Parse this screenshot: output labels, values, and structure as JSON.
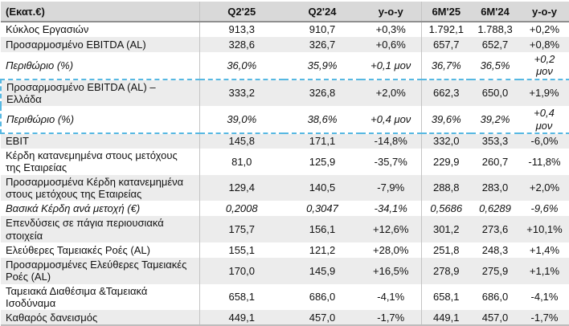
{
  "theme": {
    "header_bg": "#d9d9d9",
    "stripe_bg": "#ececec",
    "highlight_border": "#57b8e2"
  },
  "table": {
    "unit_label": "(Εκατ.€)",
    "columns": [
      "Q2'25",
      "Q2'24",
      "y-o-y",
      "6M'25",
      "6M'24",
      "y-o-y"
    ],
    "rows": [
      {
        "label": "Κύκλος Εργασιών",
        "values": [
          "913,3",
          "910,7",
          "+0,3%",
          "1.792,1",
          "1.788,3",
          "+0,2%"
        ],
        "stripe": false,
        "italic": false,
        "highlighted": ""
      },
      {
        "label": "Προσαρμοσμένο EBITDA (AL)",
        "values": [
          "328,6",
          "326,7",
          "+0,6%",
          "657,7",
          "652,7",
          "+0,8%"
        ],
        "stripe": true,
        "italic": false,
        "highlighted": ""
      },
      {
        "label": "Περιθώριο (%)",
        "values": [
          "36,0%",
          "35,9%",
          "+0,1 μον",
          "36,7%",
          "36,5%",
          "+0,2\nμον"
        ],
        "stripe": false,
        "italic": true,
        "highlighted": ""
      },
      {
        "label": "Προσαρμοσμένο EBITDA (AL) –\nΕλλάδα",
        "values": [
          "333,2",
          "326,8",
          "+2,0%",
          "662,3",
          "650,0",
          "+1,9%"
        ],
        "stripe": true,
        "italic": false,
        "highlighted": "top"
      },
      {
        "label": "Περιθώριο (%)",
        "values": [
          "39,0%",
          "38,6%",
          "+0,4 μον",
          "39,6%",
          "39,2%",
          "+0,4\nμον"
        ],
        "stripe": false,
        "italic": true,
        "highlighted": "bottom"
      },
      {
        "label": "EBIT",
        "values": [
          "145,8",
          "171,1",
          "-14,8%",
          "332,0",
          "353,3",
          "-6,0%"
        ],
        "stripe": true,
        "italic": false,
        "highlighted": ""
      },
      {
        "label": "Κέρδη κατανεμημένα στους μετόχους\nτης Εταιρείας",
        "values": [
          "81,0",
          "125,9",
          "-35,7%",
          "229,9",
          "260,7",
          "-11,8%"
        ],
        "stripe": false,
        "italic": false,
        "highlighted": ""
      },
      {
        "label": "Προσαρμοσμένα Κέρδη κατανεμημένα\nστους μετόχους της Εταιρείας",
        "values": [
          "129,4",
          "140,5",
          "-7,9%",
          "288,8",
          "283,0",
          "+2,0%"
        ],
        "stripe": true,
        "italic": false,
        "highlighted": ""
      },
      {
        "label": "Βασικά Κέρδη ανά μετοχή (€)",
        "values": [
          "0,2008",
          "0,3047",
          "-34,1%",
          "0,5686",
          "0,6289",
          "-9,6%"
        ],
        "stripe": false,
        "italic": true,
        "highlighted": ""
      },
      {
        "label": "Επενδύσεις σε πάγια περιουσιακά\nστοιχεία",
        "values": [
          "175,7",
          "156,1",
          "+12,6%",
          "301,2",
          "273,6",
          "+10,1%"
        ],
        "stripe": true,
        "italic": false,
        "highlighted": ""
      },
      {
        "label": "Ελεύθερες Ταμειακές Ροές (AL)",
        "values": [
          "155,1",
          "121,2",
          "+28,0%",
          "251,8",
          "248,3",
          "+1,4%"
        ],
        "stripe": false,
        "italic": false,
        "highlighted": ""
      },
      {
        "label": "Προσαρμοσμένες Ελεύθερες Ταμειακές\nΡοές (AL)",
        "values": [
          "170,0",
          "145,9",
          "+16,5%",
          "278,9",
          "275,9",
          "+1,1%"
        ],
        "stripe": true,
        "italic": false,
        "highlighted": ""
      },
      {
        "label": "Ταμειακά Διαθέσιμα &Ταμειακά\nΙσοδύναμα",
        "values": [
          "658,1",
          "686,0",
          "-4,1%",
          "658,1",
          "686,0",
          "-4,1%"
        ],
        "stripe": false,
        "italic": false,
        "highlighted": ""
      },
      {
        "label": "Καθαρός δανεισμός",
        "values": [
          "449,1",
          "457,0",
          "-1,7%",
          "449,1",
          "457,0",
          "-1,7%"
        ],
        "stripe": true,
        "italic": false,
        "highlighted": ""
      }
    ]
  }
}
